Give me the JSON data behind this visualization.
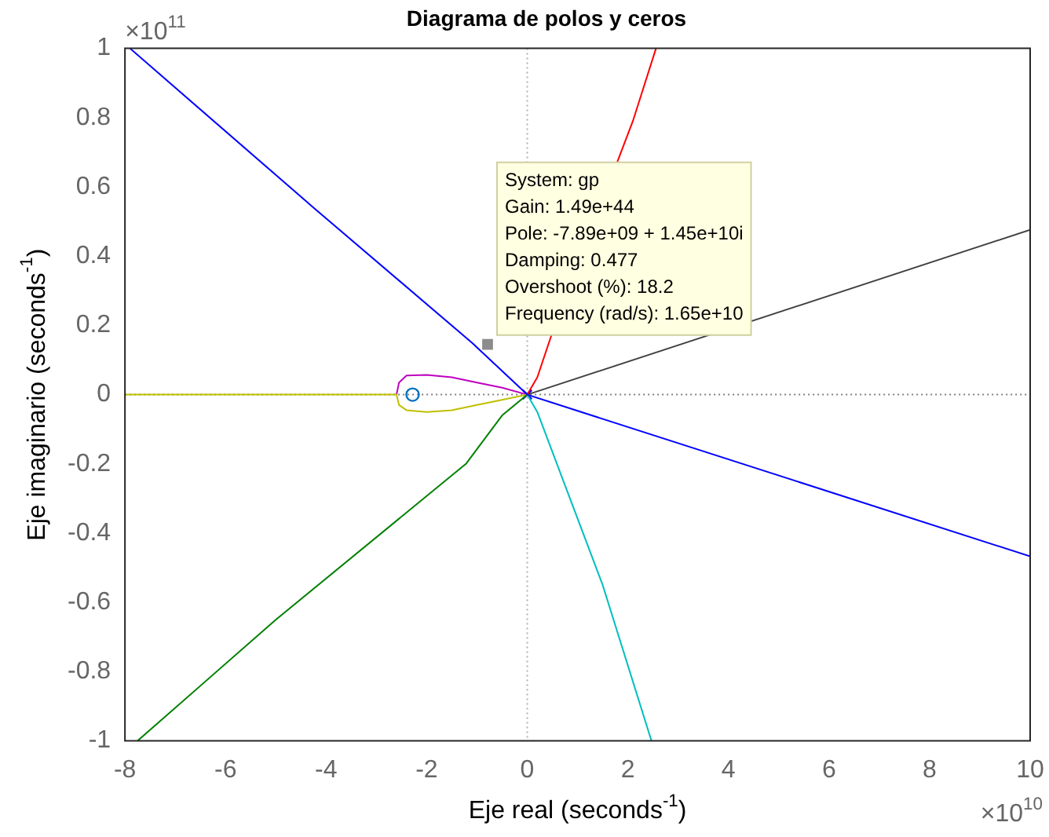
{
  "chart_data": {
    "type": "line",
    "title": "Diagrama de polos y ceros",
    "xlabel": "Eje real (seconds$^{-1}$)",
    "ylabel": "Eje imaginario (seconds$^{-1}$)",
    "xlim": [
      -8,
      10
    ],
    "xticks": [
      -8,
      -6,
      -4,
      -2,
      0,
      2,
      4,
      6,
      8,
      10
    ],
    "ylim": [
      -1,
      1
    ],
    "yticks": [
      -1,
      -0.8,
      -0.6,
      -0.4,
      -0.2,
      0,
      0.2,
      0.4,
      0.6,
      0.8,
      1
    ],
    "grid": false,
    "legend": false,
    "series": [
      {
        "type": "line",
        "color": "#0000ff",
        "marker": "none",
        "x": [
          0,
          -1.1,
          -4.25,
          -7.9
        ],
        "values": [
          0,
          0.15,
          0.54,
          1
        ]
      },
      {
        "type": "line",
        "color": "#0000ff",
        "marker": "none",
        "x": [
          0,
          10
        ],
        "values": [
          0,
          -0.467
        ]
      },
      {
        "type": "line",
        "color": "#ff0000",
        "marker": "none",
        "x": [
          0,
          0.2,
          0.5,
          2.1,
          2.56
        ],
        "values": [
          0,
          0.05,
          0.18,
          0.79,
          1
        ]
      },
      {
        "type": "line",
        "color": "#00bfbf",
        "marker": "none",
        "x": [
          0,
          0.2,
          0.59,
          1.5,
          2.47
        ],
        "values": [
          0,
          -0.05,
          -0.2,
          -0.55,
          -1
        ]
      },
      {
        "type": "line",
        "color": "#404040",
        "marker": "none",
        "x": [
          0,
          10
        ],
        "values": [
          0,
          0.476
        ]
      },
      {
        "type": "line",
        "color": "#008000",
        "marker": "none",
        "x": [
          0,
          -0.5,
          -1.22,
          -5,
          -7.75
        ],
        "values": [
          0,
          -0.06,
          -0.2,
          -0.65,
          -1
        ]
      },
      {
        "type": "line",
        "color": "#bfbf00",
        "marker": "none",
        "x": [
          -8,
          -2.6,
          -2.55,
          -2.4,
          -2,
          -1.5,
          -1,
          -0.5,
          0
        ],
        "values": [
          0,
          0,
          -0.03,
          -0.045,
          -0.05,
          -0.045,
          -0.03,
          -0.015,
          0
        ]
      },
      {
        "type": "line",
        "color": "#bf00bf",
        "marker": "none",
        "x": [
          -2.6,
          -2.55,
          -2.4,
          -2,
          -1.5,
          -1,
          -0.5,
          0
        ],
        "values": [
          0,
          0.035,
          0.055,
          0.057,
          0.05,
          0.035,
          0.02,
          0
        ]
      },
      {
        "type": "scatter",
        "color": "#0072bd",
        "marker": "circle",
        "x": [
          -2.28
        ],
        "values": [
          0
        ]
      },
      {
        "type": "scatter",
        "color": "#0000ff",
        "marker": "cross",
        "x": [
          0
        ],
        "values": [
          0
        ]
      },
      {
        "type": "scatter",
        "color": "#8c8c8c",
        "marker": "square",
        "x": [
          -0.789
        ],
        "values": [
          0.145
        ]
      }
    ],
    "ref_lines": [
      {
        "axis": "x",
        "value": 0,
        "color": "#b0b0b0",
        "line_style": "dotted"
      },
      {
        "axis": "y",
        "value": 0,
        "color": "#808080",
        "line_style": "dotted"
      }
    ],
    "annotations": [
      {
        "text": "System: gp\nGain: 1.49e+44\nPole: -7.89e+09 + 1.45e+10i\nDamping: 0.477\nOvershoot (%): 18.2\nFrequency (rad/s): 1.65e+10",
        "x": -0.789,
        "y": 0.145
      },
      "×10$^{11}$",
      "×10$^{10}$"
    ]
  }
}
